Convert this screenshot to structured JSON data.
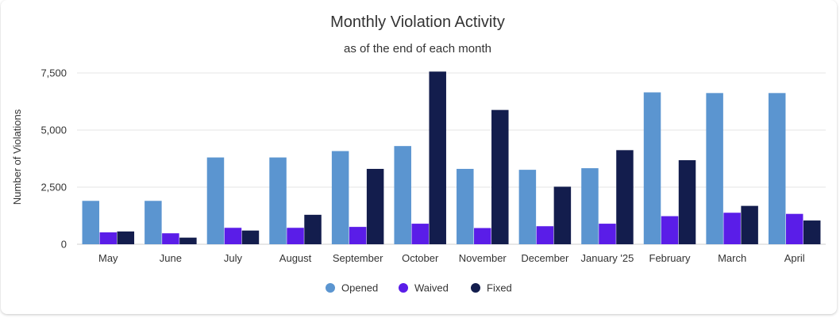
{
  "chart_data": {
    "type": "bar",
    "title": "Monthly Violation Activity",
    "subtitle": "as of the end of each month",
    "xlabel": "",
    "ylabel": "Number of Violations",
    "ylim": [
      0,
      7500
    ],
    "yticks": [
      0,
      2500,
      5000,
      7500
    ],
    "ytick_labels": [
      "0",
      "2,500",
      "5,000",
      "7,500"
    ],
    "grid": true,
    "legend_position": "bottom",
    "categories": [
      "May",
      "June",
      "July",
      "August",
      "September",
      "October",
      "November",
      "December",
      "January '25",
      "February",
      "March",
      "April"
    ],
    "series": [
      {
        "name": "Opened",
        "color": "#5b95d0",
        "values": [
          1900,
          1900,
          3800,
          3800,
          4080,
          4300,
          3300,
          3260,
          3330,
          6650,
          6620,
          6620
        ]
      },
      {
        "name": "Waived",
        "color": "#5a1de8",
        "values": [
          520,
          480,
          720,
          720,
          760,
          900,
          710,
          790,
          900,
          1230,
          1380,
          1330
        ]
      },
      {
        "name": "Fixed",
        "color": "#131d4d",
        "values": [
          560,
          290,
          600,
          1290,
          3300,
          7560,
          5880,
          2520,
          4120,
          3680,
          1680,
          1040
        ]
      }
    ]
  }
}
